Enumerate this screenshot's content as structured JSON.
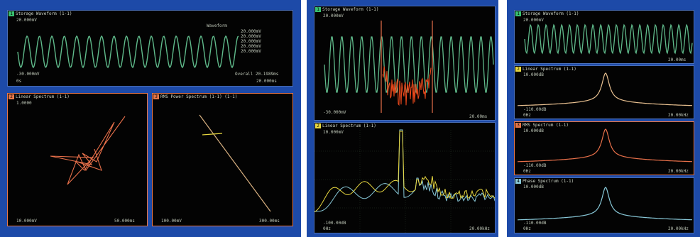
{
  "colors": {
    "background_blue": "#1d4aa8",
    "trace_green": "#5fb98a",
    "trace_orange": "#e8704a",
    "trace_red": "#f04a1c",
    "trace_yellow": "#e8d840",
    "trace_cyan": "#88c8d8",
    "trace_tan": "#d8b080",
    "badge_green": "#38c070",
    "badge_orange": "#e8784a"
  },
  "screens": [
    {
      "panels": [
        {
          "index": "1",
          "title": "Storage Waveform (1-1)",
          "top_left": "20.000mV",
          "bottom_left": "-30.000mV",
          "bottom_left2": "0s",
          "bottom_right": "Overall 20.1989ms",
          "bottom_right2": "20.000ms",
          "annotation": "Waveform",
          "side_readouts": [
            "20.000mV",
            "20.000mV",
            "20.000mV",
            "20.000mV",
            "20.000mV"
          ]
        },
        {
          "index": "2",
          "title": "Linear Spectrum (1-1)",
          "top_left": "1.0000",
          "bottom_left": "10.000mV",
          "bottom_right": "50.000ms"
        },
        {
          "index": "3",
          "title": "RMS Power Spectrum (1-1) (1-1)",
          "top_left": "",
          "bottom_left": "100.00mV",
          "bottom_right": "300.00ms"
        }
      ]
    },
    {
      "panels": [
        {
          "index": "1",
          "title": "Storage Waveform (1-1)",
          "top_left": "20.000mV",
          "bottom_left": "-30.000mV",
          "bottom_right": "20.00ms"
        },
        {
          "index": "2",
          "title": "Linear Spectrum (1-1)",
          "top_left": "10.000mV",
          "bottom_left": "-100.00dB",
          "bottom_left2": "0Hz",
          "bottom_right": "20.00kHz"
        }
      ]
    },
    {
      "panels": [
        {
          "index": "1",
          "title": "Storage Waveform (1-1)",
          "top_left": "20.000mV",
          "bottom_right": "20.00ms"
        },
        {
          "index": "2",
          "title": "Linear Spectrum (1-1)",
          "top_left": "10.000dB",
          "bottom_left": "-110.00dB",
          "bottom_left2": "0Hz",
          "bottom_right": "20.00kHz"
        },
        {
          "index": "3",
          "title": "RMS Spectrum (1-1)",
          "top_left": "10.000dB",
          "bottom_left": "-110.00dB",
          "bottom_left2": "0Hz",
          "bottom_right": "20.00kHz"
        },
        {
          "index": "4",
          "title": "Phase Spectrum (1-1)",
          "top_left": "10.000dB",
          "bottom_left": "-110.00dB",
          "bottom_left2": "0Hz",
          "bottom_right": "20.00kHz"
        }
      ]
    }
  ]
}
